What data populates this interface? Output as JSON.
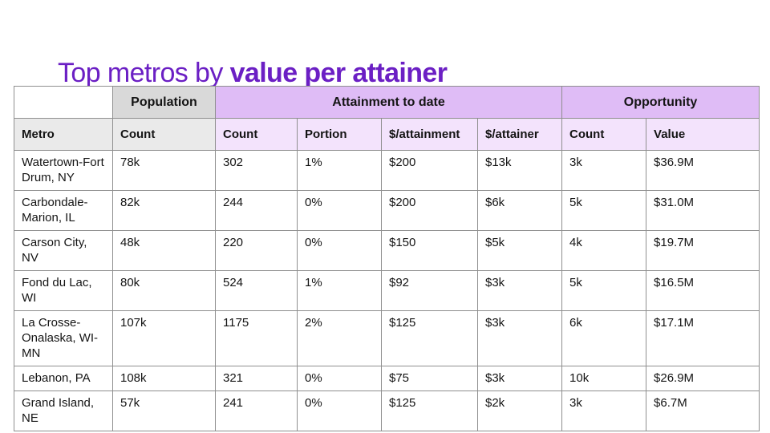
{
  "title": {
    "prefix": "Top metros by ",
    "emphasis": "value per attainer"
  },
  "colors": {
    "title_purple": "#6b1fc4",
    "group_gray": "#d9d9d9",
    "group_purple": "#dfbcf6",
    "subheader_gray": "#eaeaea",
    "subheader_purple": "#f3e3fc",
    "border": "#8f8f8f",
    "text": "#141414"
  },
  "chart_data": {
    "type": "table",
    "title": "Top metros by value per attainer",
    "column_groups": [
      {
        "label": "",
        "span": 1
      },
      {
        "label": "Population",
        "span": 1
      },
      {
        "label": "Attainment to date",
        "span": 4
      },
      {
        "label": "Opportunity",
        "span": 2
      }
    ],
    "columns": [
      "Metro",
      "Count",
      "Count",
      "Portion",
      "$/attainment",
      "$/attainer",
      "Count",
      "Value"
    ],
    "rows": [
      [
        "Watertown-Fort Drum, NY",
        "78k",
        "302",
        "1%",
        "$200",
        "$13k",
        "3k",
        "$36.9M"
      ],
      [
        "Carbondale-Marion, IL",
        "82k",
        "244",
        "0%",
        "$200",
        "$6k",
        "5k",
        "$31.0M"
      ],
      [
        "Carson City, NV",
        "48k",
        "220",
        "0%",
        "$150",
        "$5k",
        "4k",
        "$19.7M"
      ],
      [
        "Fond du Lac, WI",
        "80k",
        "524",
        "1%",
        "$92",
        "$3k",
        "5k",
        "$16.5M"
      ],
      [
        "La Crosse-Onalaska, WI-MN",
        "107k",
        "1175",
        "2%",
        "$125",
        "$3k",
        "6k",
        "$17.1M"
      ],
      [
        "Lebanon, PA",
        "108k",
        "321",
        "0%",
        "$75",
        "$3k",
        "10k",
        "$26.9M"
      ],
      [
        "Grand Island, NE",
        "57k",
        "241",
        "0%",
        "$125",
        "$2k",
        "3k",
        "$6.7M"
      ]
    ]
  }
}
